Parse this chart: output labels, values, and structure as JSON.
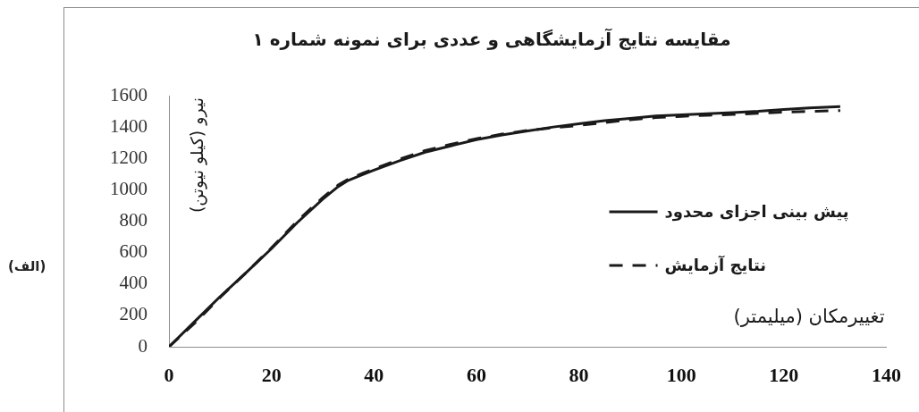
{
  "chart_data": {
    "type": "line",
    "title": "مقایسه نتایج آزمایشگاهی و عددی برای نمونه شماره ۱",
    "xlabel": "تغییرمکان (میلیمتر)",
    "ylabel": "نیرو (کیلو نیوتن)",
    "annotations": [
      "(الف)"
    ],
    "series": [
      {
        "name": "پیش بینی اجزای محدود",
        "color": "#1a1a1a",
        "line_style": "solid",
        "x": [
          0,
          5,
          10,
          15,
          20,
          25,
          30,
          33,
          35,
          38,
          40,
          45,
          50,
          55,
          60,
          65,
          70,
          75,
          80,
          85,
          90,
          95,
          100,
          105,
          110,
          115,
          120,
          125,
          131
        ],
        "values": [
          0,
          160,
          320,
          470,
          625,
          790,
          940,
          1020,
          1060,
          1100,
          1125,
          1185,
          1240,
          1280,
          1320,
          1350,
          1375,
          1400,
          1420,
          1440,
          1455,
          1470,
          1478,
          1485,
          1492,
          1500,
          1512,
          1522,
          1530
        ]
      },
      {
        "name": "نتایج آزمایش",
        "color": "#1a1a1a",
        "line_style": "dashed",
        "x": [
          0,
          5,
          10,
          15,
          20,
          25,
          30,
          33,
          35,
          38,
          40,
          45,
          50,
          55,
          60,
          65,
          70,
          75,
          80,
          85,
          90,
          95,
          100,
          105,
          110,
          115,
          120,
          125,
          131
        ],
        "values": [
          0,
          150,
          315,
          470,
          630,
          800,
          950,
          1030,
          1068,
          1108,
          1133,
          1195,
          1250,
          1290,
          1325,
          1355,
          1378,
          1395,
          1410,
          1428,
          1446,
          1460,
          1468,
          1475,
          1480,
          1487,
          1495,
          1500,
          1505
        ]
      }
    ],
    "xlim": [
      0,
      140
    ],
    "ylim": [
      0,
      1600
    ],
    "xticks": [
      0,
      20,
      40,
      60,
      80,
      100,
      120,
      140
    ],
    "yticks": [
      0,
      200,
      400,
      600,
      800,
      1000,
      1200,
      1400,
      1600
    ],
    "grid": false,
    "legend": "right",
    "marker": "none"
  }
}
